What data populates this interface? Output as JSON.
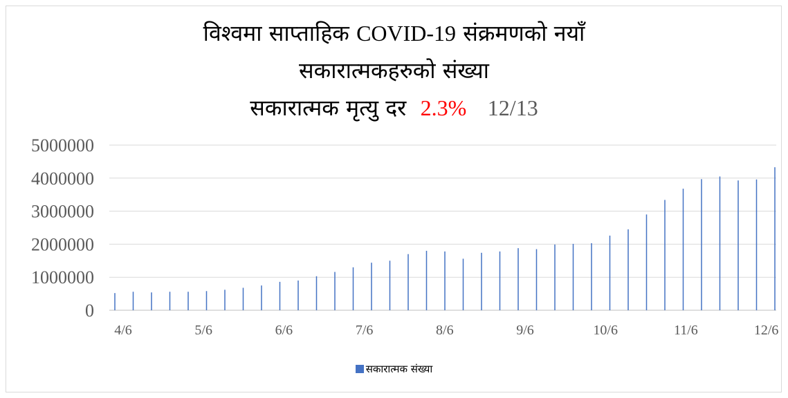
{
  "chart_data": {
    "type": "bar",
    "title_line1_a": "विश्वमा साप्ताहिक ",
    "title_line1_b": "COVID-19",
    "title_line1_c": " संक्रमणको नयाँ",
    "title_line2": "सकारात्मकहरुको संख्या",
    "title_line3_label": "सकारात्मक मृत्यु दर",
    "death_rate": "2.3%",
    "as_of_date": "12/13",
    "ylim": [
      0,
      5000000
    ],
    "y_ticks": [
      "0",
      "1000000",
      "2000000",
      "3000000",
      "4000000",
      "5000000"
    ],
    "x_ticks": [
      "4/6",
      "5/6",
      "6/6",
      "7/6",
      "8/6",
      "9/6",
      "10/6",
      "11/6",
      "12/6"
    ],
    "grid": true,
    "legend_position": "bottom",
    "series": [
      {
        "name": "सकारात्मक संख्या",
        "color": "#4472c4",
        "values": [
          520000,
          560000,
          540000,
          560000,
          560000,
          580000,
          620000,
          680000,
          750000,
          860000,
          900000,
          1030000,
          1160000,
          1300000,
          1440000,
          1500000,
          1700000,
          1800000,
          1780000,
          1560000,
          1740000,
          1780000,
          1880000,
          1850000,
          1990000,
          2010000,
          2030000,
          2260000,
          2450000,
          2900000,
          3340000,
          3680000,
          3970000,
          4050000,
          3930000,
          3960000,
          4330000
        ]
      }
    ]
  }
}
